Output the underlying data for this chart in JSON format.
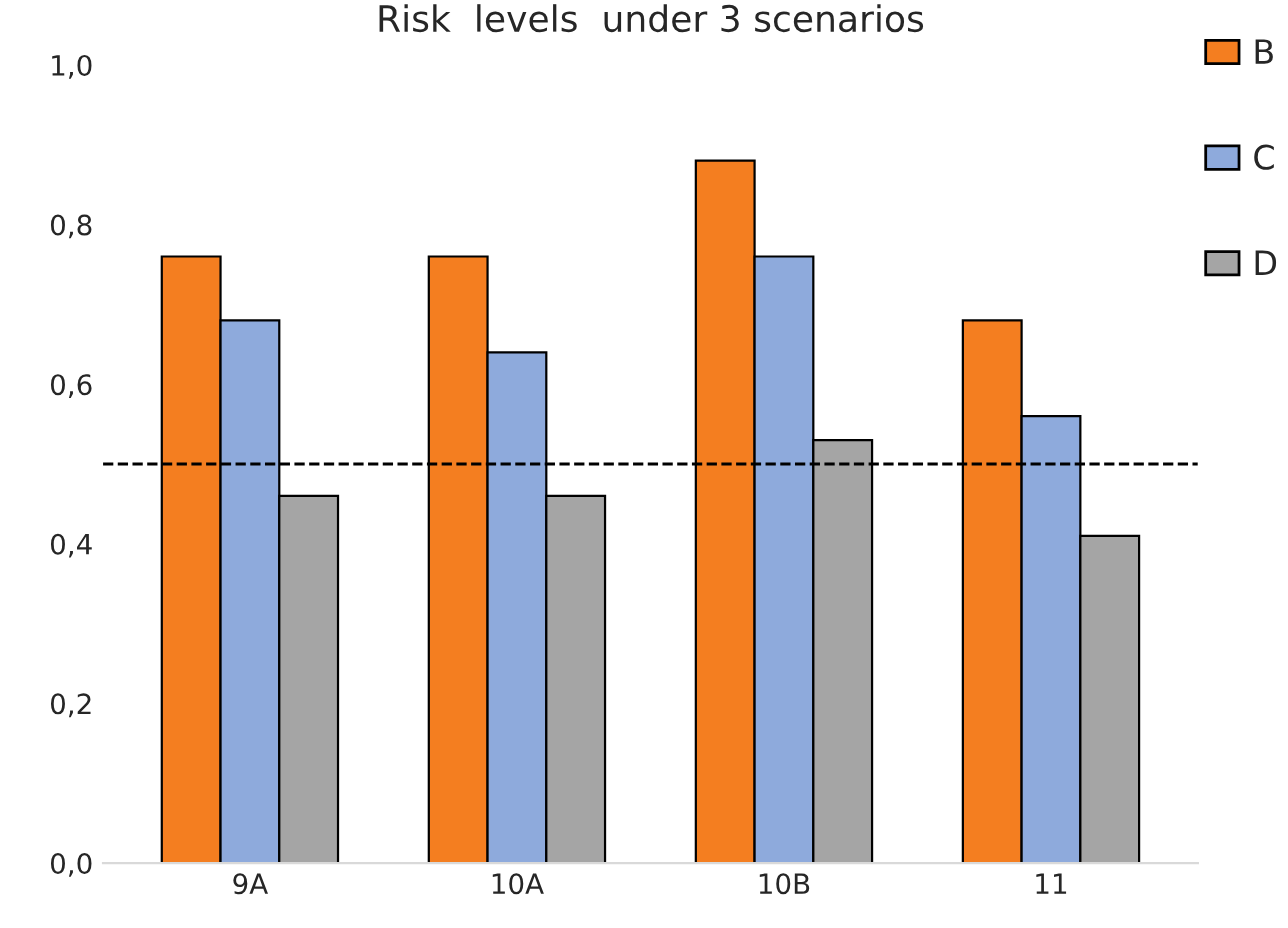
{
  "chart_data": {
    "type": "bar",
    "title": "Risk  levels  under 3 scenarios",
    "categories": [
      "9A",
      "10A",
      "10B",
      "11"
    ],
    "series": [
      {
        "name": "B",
        "color": "#f47e20",
        "values": [
          0.76,
          0.76,
          0.88,
          0.68
        ]
      },
      {
        "name": "C",
        "color": "#8eaadc",
        "values": [
          0.68,
          0.64,
          0.76,
          0.56
        ]
      },
      {
        "name": "D",
        "color": "#a5a5a5",
        "values": [
          0.46,
          0.46,
          0.53,
          0.41
        ]
      }
    ],
    "ylim": [
      0,
      1.0
    ],
    "yticks": [
      {
        "value": 0,
        "label": "0,0"
      },
      {
        "value": 0.2,
        "label": "0,2"
      },
      {
        "value": 0.4,
        "label": "0,4"
      },
      {
        "value": 0.6,
        "label": "0,6"
      },
      {
        "value": 0.8,
        "label": "0,8"
      },
      {
        "value": 1.0,
        "label": "1,0"
      }
    ],
    "ref_lines": [
      {
        "axis": "y",
        "value": 0.5,
        "color": "#000000",
        "line_style": "dashed"
      }
    ],
    "legend": "top right"
  }
}
